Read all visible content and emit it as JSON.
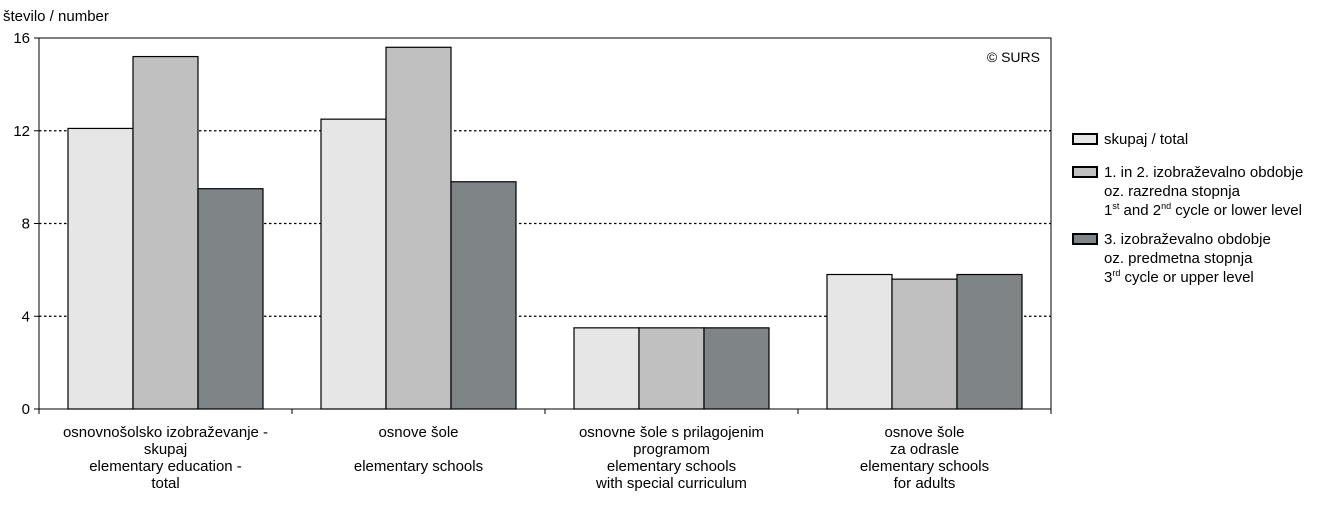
{
  "chart_data": {
    "type": "bar",
    "ylabel": "število / number",
    "ylim": [
      0,
      16
    ],
    "yticks": [
      0,
      4,
      8,
      12,
      16
    ],
    "grid": true,
    "legend_position": "right",
    "watermark": "© SURS",
    "categories": [
      [
        "osnovnošolsko izobraževanje -",
        "skupaj",
        "elementary education -",
        "total"
      ],
      [
        "osnove šole",
        "",
        "elementary schools"
      ],
      [
        "osnovne šole s prilagojenim",
        "programom",
        "elementary schools",
        "with special curriculum"
      ],
      [
        "osnove šole",
        "za odrasle",
        "elementary schools",
        "for adults"
      ]
    ],
    "series": [
      {
        "name": "skupaj / total",
        "label_lines": [
          [
            "skupaj / total"
          ]
        ],
        "color": "#e6e6e6",
        "values": [
          12.1,
          12.5,
          3.5,
          5.8
        ]
      },
      {
        "name": "1. in 2. izobraževalno obdobje oz. razredna stopnja 1st and 2nd cycle or lower level",
        "label_lines": [
          [
            "1. in 2. izobraževalno obdobje"
          ],
          [
            "oz. razredna stopnja"
          ],
          [
            "1",
            "st",
            " and 2",
            "nd",
            " cycle or lower level"
          ]
        ],
        "color": "#c0c0c0",
        "values": [
          15.2,
          15.6,
          3.5,
          5.6
        ]
      },
      {
        "name": "3. izobraževalno obdobje oz. predmetna stopnja 3rd cycle or upper level",
        "label_lines": [
          [
            "3. izobraževalno obdobje"
          ],
          [
            "oz. predmetna stopnja"
          ],
          [
            "3",
            "rd",
            " cycle or upper level"
          ]
        ],
        "color": "#7f8587",
        "values": [
          9.5,
          9.8,
          3.5,
          5.8
        ]
      }
    ]
  }
}
